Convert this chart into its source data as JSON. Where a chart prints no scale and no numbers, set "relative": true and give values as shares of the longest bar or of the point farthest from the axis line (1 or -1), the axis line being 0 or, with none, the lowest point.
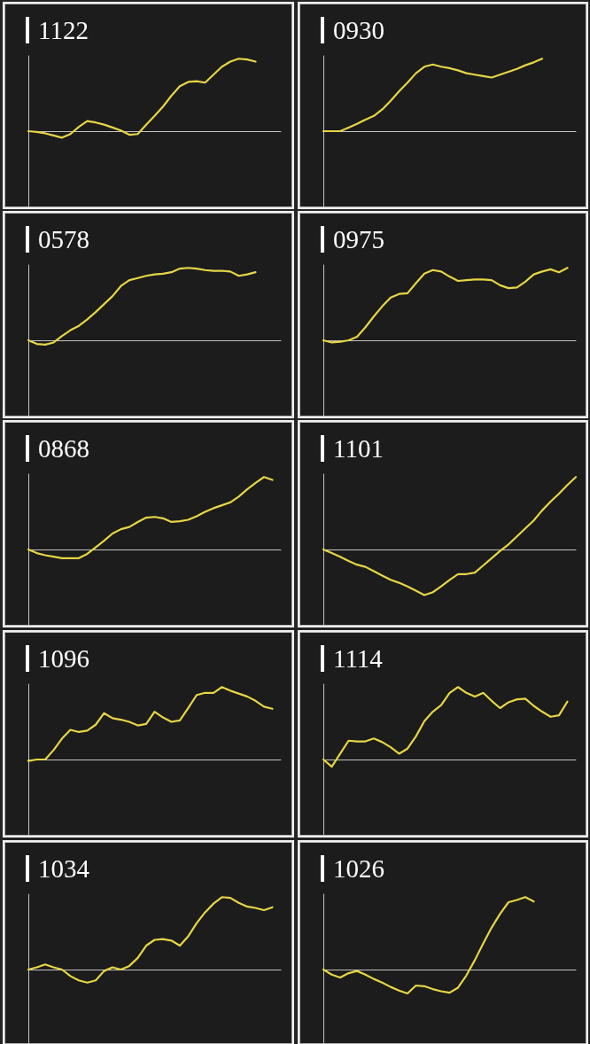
{
  "chart_data": [
    {
      "type": "line",
      "title": "1122",
      "relative": true,
      "marker": "none",
      "color": "#e6d546",
      "categories": [
        null,
        null,
        null,
        null,
        null,
        null,
        null,
        null,
        null,
        null,
        null,
        null,
        null,
        null,
        null,
        null,
        null,
        null,
        null,
        null,
        null,
        null,
        null,
        null,
        null,
        null,
        null,
        null,
        null,
        null,
        null
      ],
      "values": [
        0,
        -0.01,
        -0.03,
        -0.06,
        -0.09,
        -0.04,
        0.06,
        0.14,
        0.12,
        0.09,
        0.05,
        0.01,
        -0.05,
        -0.04,
        0.09,
        0.21,
        0.34,
        0.49,
        0.62,
        0.68,
        0.69,
        0.67,
        0.78,
        0.89,
        0.96,
        1,
        0.99,
        0.96,
        null,
        null,
        null
      ]
    },
    {
      "type": "line",
      "title": "0930",
      "relative": true,
      "marker": "none",
      "color": "#e6d546",
      "categories": [
        null,
        null,
        null,
        null,
        null,
        null,
        null,
        null,
        null,
        null,
        null,
        null,
        null,
        null,
        null,
        null,
        null,
        null,
        null,
        null,
        null,
        null,
        null,
        null,
        null,
        null,
        null,
        null,
        null,
        null,
        null
      ],
      "values": [
        0,
        0,
        0,
        0.05,
        0.1,
        0.16,
        0.21,
        0.3,
        0.42,
        0.55,
        0.67,
        0.8,
        0.89,
        0.92,
        0.89,
        0.87,
        0.84,
        0.8,
        0.78,
        0.76,
        0.74,
        0.78,
        0.82,
        0.86,
        0.91,
        0.95,
        1,
        null,
        null,
        null,
        null
      ]
    },
    {
      "type": "line",
      "title": "0578",
      "relative": true,
      "marker": "none",
      "color": "#e6d546",
      "categories": [
        null,
        null,
        null,
        null,
        null,
        null,
        null,
        null,
        null,
        null,
        null,
        null,
        null,
        null,
        null,
        null,
        null,
        null,
        null,
        null,
        null,
        null,
        null,
        null,
        null,
        null,
        null,
        null,
        null,
        null,
        null
      ],
      "values": [
        0,
        -0.05,
        -0.06,
        -0.03,
        0.06,
        0.14,
        0.2,
        0.29,
        0.39,
        0.5,
        0.61,
        0.75,
        0.83,
        0.86,
        0.89,
        0.91,
        0.92,
        0.94,
        0.99,
        1,
        0.99,
        0.97,
        0.96,
        0.96,
        0.95,
        0.89,
        0.91,
        0.94,
        null,
        null,
        null
      ]
    },
    {
      "type": "line",
      "title": "0975",
      "relative": true,
      "marker": "none",
      "color": "#e6d546",
      "categories": [
        null,
        null,
        null,
        null,
        null,
        null,
        null,
        null,
        null,
        null,
        null,
        null,
        null,
        null,
        null,
        null,
        null,
        null,
        null,
        null,
        null,
        null,
        null,
        null,
        null,
        null,
        null,
        null,
        null,
        null,
        null
      ],
      "values": [
        0,
        -0.03,
        -0.02,
        0,
        0.05,
        0.18,
        0.33,
        0.47,
        0.59,
        0.64,
        0.65,
        0.79,
        0.92,
        0.97,
        0.95,
        0.88,
        0.82,
        0.83,
        0.84,
        0.84,
        0.83,
        0.76,
        0.72,
        0.73,
        0.81,
        0.91,
        0.95,
        0.98,
        0.94,
        1,
        null
      ]
    },
    {
      "type": "line",
      "title": "0868",
      "relative": true,
      "marker": "none",
      "color": "#e6d546",
      "categories": [
        null,
        null,
        null,
        null,
        null,
        null,
        null,
        null,
        null,
        null,
        null,
        null,
        null,
        null,
        null,
        null,
        null,
        null,
        null,
        null,
        null,
        null,
        null,
        null,
        null,
        null,
        null,
        null,
        null,
        null,
        null
      ],
      "values": [
        0,
        -0.05,
        -0.08,
        -0.1,
        -0.12,
        -0.12,
        -0.12,
        -0.06,
        0.03,
        0.12,
        0.22,
        0.28,
        0.31,
        0.38,
        0.44,
        0.45,
        0.43,
        0.38,
        0.39,
        0.41,
        0.46,
        0.52,
        0.57,
        0.61,
        0.65,
        0.73,
        0.83,
        0.92,
        1,
        0.96,
        null
      ]
    },
    {
      "type": "line",
      "title": "1101",
      "relative": true,
      "marker": "none",
      "color": "#e6d546",
      "categories": [
        null,
        null,
        null,
        null,
        null,
        null,
        null,
        null,
        null,
        null,
        null,
        null,
        null,
        null,
        null,
        null,
        null,
        null,
        null,
        null,
        null,
        null,
        null,
        null,
        null,
        null,
        null,
        null,
        null,
        null,
        null
      ],
      "values": [
        0,
        -0.05,
        -0.1,
        -0.16,
        -0.21,
        -0.24,
        -0.3,
        -0.36,
        -0.42,
        -0.46,
        -0.51,
        -0.57,
        -0.63,
        -0.59,
        -0.51,
        -0.42,
        -0.34,
        -0.34,
        -0.32,
        -0.22,
        -0.12,
        -0.02,
        0.07,
        0.18,
        0.29,
        0.4,
        0.54,
        0.66,
        0.77,
        0.89,
        1
      ]
    },
    {
      "type": "line",
      "title": "1096",
      "relative": true,
      "marker": "none",
      "color": "#e6d546",
      "categories": [
        null,
        null,
        null,
        null,
        null,
        null,
        null,
        null,
        null,
        null,
        null,
        null,
        null,
        null,
        null,
        null,
        null,
        null,
        null,
        null,
        null,
        null,
        null,
        null,
        null,
        null,
        null,
        null,
        null,
        null,
        null
      ],
      "values": [
        -0.02,
        0,
        0,
        0.13,
        0.29,
        0.41,
        0.38,
        0.4,
        0.48,
        0.64,
        0.57,
        0.55,
        0.52,
        0.47,
        0.49,
        0.66,
        0.58,
        0.52,
        0.54,
        0.71,
        0.89,
        0.92,
        0.92,
        1,
        0.95,
        0.91,
        0.87,
        0.81,
        0.73,
        0.7,
        null
      ]
    },
    {
      "type": "line",
      "title": "1114",
      "relative": true,
      "marker": "none",
      "color": "#e6d546",
      "categories": [
        null,
        null,
        null,
        null,
        null,
        null,
        null,
        null,
        null,
        null,
        null,
        null,
        null,
        null,
        null,
        null,
        null,
        null,
        null,
        null,
        null,
        null,
        null,
        null,
        null,
        null,
        null,
        null,
        null,
        null,
        null
      ],
      "values": [
        0,
        -0.1,
        0.08,
        0.26,
        0.25,
        0.25,
        0.29,
        0.24,
        0.17,
        0.08,
        0.15,
        0.32,
        0.53,
        0.66,
        0.75,
        0.92,
        1,
        0.92,
        0.87,
        0.92,
        0.81,
        0.71,
        0.79,
        0.83,
        0.84,
        0.74,
        0.66,
        0.59,
        0.61,
        0.8,
        null
      ]
    },
    {
      "type": "line",
      "title": "1034",
      "relative": true,
      "marker": "none",
      "color": "#e6d546",
      "categories": [
        null,
        null,
        null,
        null,
        null,
        null,
        null,
        null,
        null,
        null,
        null,
        null,
        null,
        null,
        null,
        null,
        null,
        null,
        null,
        null,
        null,
        null,
        null,
        null,
        null,
        null,
        null,
        null,
        null,
        null,
        null
      ],
      "values": [
        0,
        0.03,
        0.07,
        0.03,
        0,
        -0.09,
        -0.15,
        -0.18,
        -0.15,
        -0.02,
        0.03,
        0,
        0.05,
        0.16,
        0.33,
        0.41,
        0.42,
        0.4,
        0.33,
        0.46,
        0.64,
        0.79,
        0.91,
        1,
        0.99,
        0.92,
        0.87,
        0.85,
        0.82,
        0.86,
        null
      ]
    },
    {
      "type": "line",
      "title": "1026",
      "relative": true,
      "marker": "none",
      "color": "#e6d546",
      "categories": [
        null,
        null,
        null,
        null,
        null,
        null,
        null,
        null,
        null,
        null,
        null,
        null,
        null,
        null,
        null,
        null,
        null,
        null,
        null,
        null,
        null,
        null,
        null,
        null,
        null,
        null,
        null,
        null,
        null,
        null,
        null
      ],
      "values": [
        0,
        -0.07,
        -0.11,
        -0.05,
        -0.02,
        -0.07,
        -0.13,
        -0.18,
        -0.24,
        -0.29,
        -0.33,
        -0.22,
        -0.23,
        -0.27,
        -0.3,
        -0.32,
        -0.25,
        -0.08,
        0.13,
        0.36,
        0.58,
        0.77,
        0.93,
        0.96,
        1,
        0.94,
        null,
        null,
        null,
        null,
        null
      ]
    }
  ]
}
